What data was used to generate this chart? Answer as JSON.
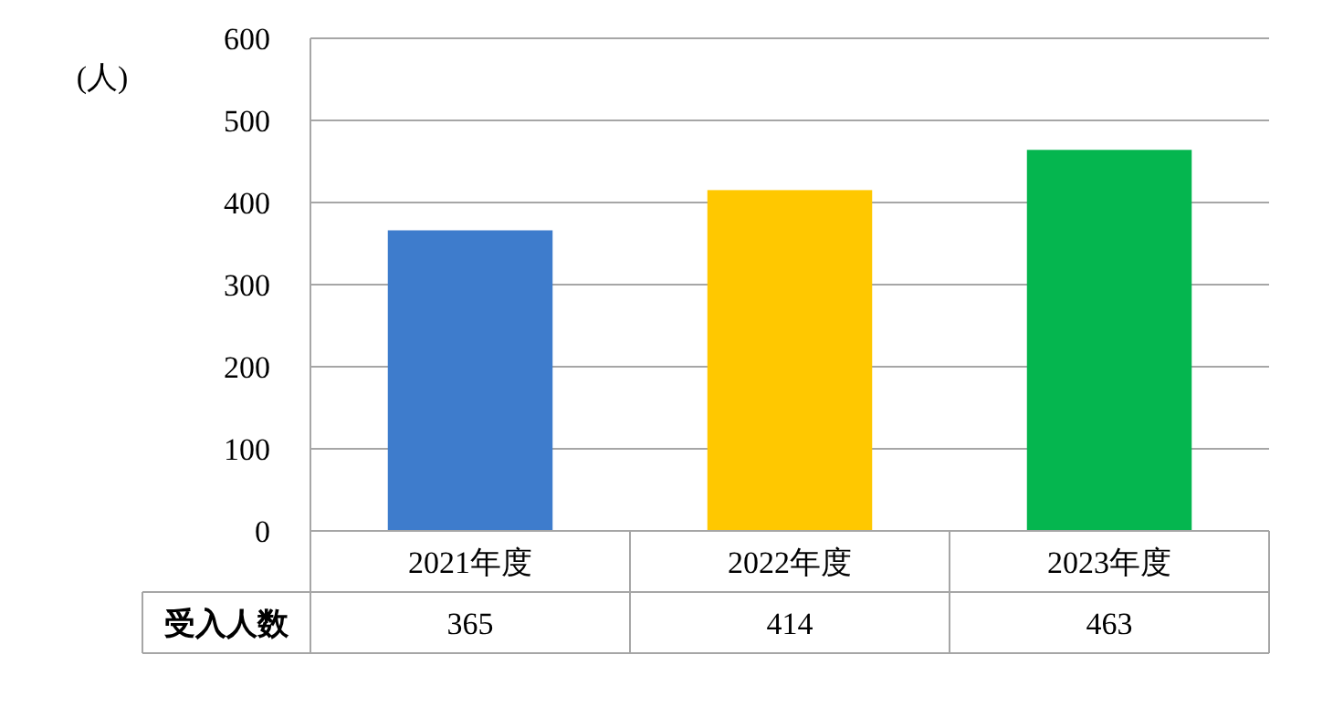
{
  "chart_data": {
    "type": "bar",
    "ylabel": "(人)",
    "categories": [
      "2021年度",
      "2022年度",
      "2023年度"
    ],
    "series": [
      {
        "name": "受入人数",
        "values": [
          365,
          414,
          463
        ],
        "colors": [
          "#3e7ccc",
          "#ffc800",
          "#05b64f"
        ]
      }
    ],
    "ylim": [
      0,
      600
    ],
    "yticks": [
      0,
      100,
      200,
      300,
      400,
      500,
      600
    ],
    "grid": "y",
    "data_labels": true
  }
}
